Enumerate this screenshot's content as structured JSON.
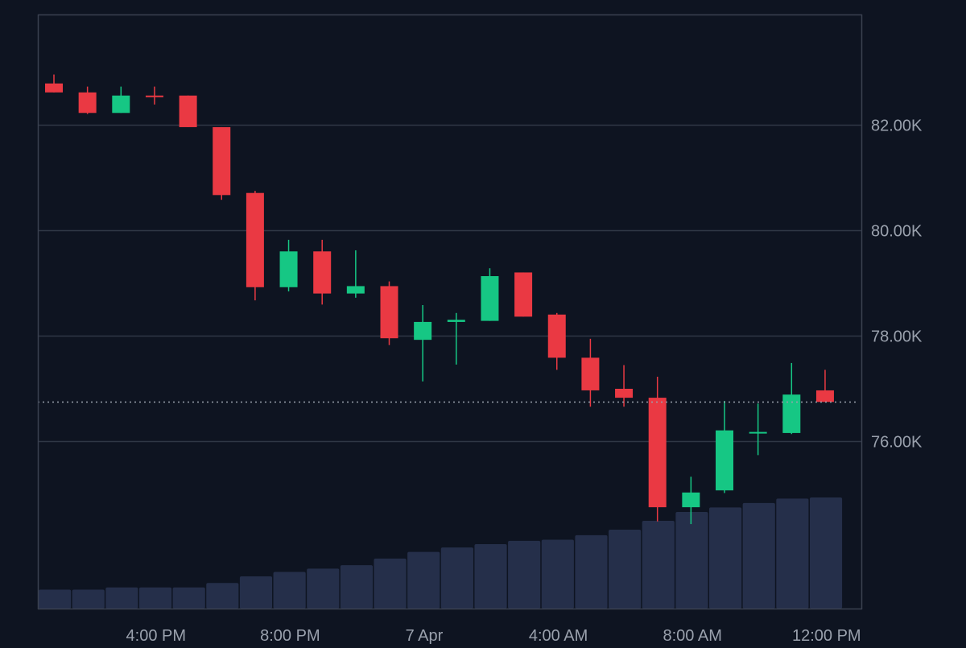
{
  "colors": {
    "background": "#0e1421",
    "frame": "#3a4150",
    "grid": "#2f3745",
    "up": "#16c784",
    "down": "#ea3943",
    "volume": "#252f4a",
    "text": "#9aa1ad",
    "last_price_line": "#9aa1ad"
  },
  "chart_data": {
    "type": "candlestick",
    "title": "",
    "xlabel": "",
    "ylabel": "",
    "y_axis_side": "right",
    "ylim": [
      72800,
      84100
    ],
    "grid": true,
    "y_ticks": [
      {
        "value": 82000,
        "label": "82.00K"
      },
      {
        "value": 80000,
        "label": "80.00K"
      },
      {
        "value": 78000,
        "label": "78.00K"
      },
      {
        "value": 76000,
        "label": "76.00K"
      }
    ],
    "x_ticks": [
      {
        "index": 3.5,
        "label": "4:00 PM"
      },
      {
        "index": 7.5,
        "label": "8:00 PM"
      },
      {
        "index": 11.5,
        "label": "7 Apr"
      },
      {
        "index": 15.5,
        "label": "4:00 AM"
      },
      {
        "index": 19.5,
        "label": "8:00 AM"
      },
      {
        "index": 23.5,
        "label": "12:00 PM"
      }
    ],
    "last_price": 76740,
    "candles": [
      {
        "o": 82790,
        "h": 82960,
        "l": 82620,
        "c": 82620
      },
      {
        "o": 82620,
        "h": 82730,
        "l": 82210,
        "c": 82230
      },
      {
        "o": 82230,
        "h": 82730,
        "l": 82230,
        "c": 82560
      },
      {
        "o": 82560,
        "h": 82730,
        "l": 82390,
        "c": 82540
      },
      {
        "o": 82560,
        "h": 82560,
        "l": 81960,
        "c": 81960
      },
      {
        "o": 81960,
        "h": 81960,
        "l": 80580,
        "c": 80670
      },
      {
        "o": 80710,
        "h": 80750,
        "l": 78670,
        "c": 78920
      },
      {
        "o": 78920,
        "h": 79820,
        "l": 78840,
        "c": 79600
      },
      {
        "o": 79600,
        "h": 79820,
        "l": 78590,
        "c": 78800
      },
      {
        "o": 78800,
        "h": 79620,
        "l": 78720,
        "c": 78940
      },
      {
        "o": 78940,
        "h": 79030,
        "l": 77820,
        "c": 77950
      },
      {
        "o": 77920,
        "h": 78580,
        "l": 77130,
        "c": 78260
      },
      {
        "o": 78260,
        "h": 78430,
        "l": 77450,
        "c": 78300
      },
      {
        "o": 78280,
        "h": 79280,
        "l": 78280,
        "c": 79130
      },
      {
        "o": 79200,
        "h": 79200,
        "l": 78360,
        "c": 78360
      },
      {
        "o": 78400,
        "h": 78430,
        "l": 77350,
        "c": 77580
      },
      {
        "o": 77580,
        "h": 77940,
        "l": 76650,
        "c": 76960
      },
      {
        "o": 76990,
        "h": 77440,
        "l": 76650,
        "c": 76820
      },
      {
        "o": 76820,
        "h": 77220,
        "l": 74470,
        "c": 74740
      },
      {
        "o": 74740,
        "h": 75320,
        "l": 74420,
        "c": 75020
      },
      {
        "o": 75060,
        "h": 76760,
        "l": 75010,
        "c": 76200
      },
      {
        "o": 76170,
        "h": 76710,
        "l": 75730,
        "c": 76170
      },
      {
        "o": 76150,
        "h": 77480,
        "l": 76130,
        "c": 76880
      },
      {
        "o": 76960,
        "h": 77350,
        "l": 76740,
        "c": 76740
      }
    ],
    "volume": [
      0.17,
      0.17,
      0.19,
      0.19,
      0.19,
      0.23,
      0.29,
      0.33,
      0.36,
      0.39,
      0.45,
      0.51,
      0.55,
      0.58,
      0.61,
      0.62,
      0.66,
      0.71,
      0.79,
      0.87,
      0.91,
      0.95,
      0.99,
      1.0
    ]
  }
}
